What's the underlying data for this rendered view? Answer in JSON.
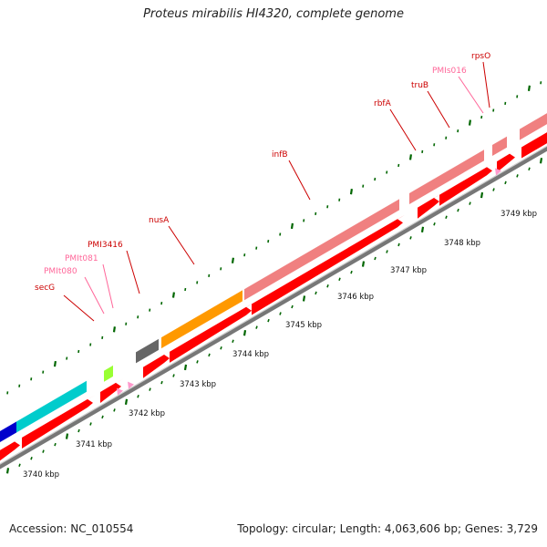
{
  "title": "Proteus mirabilis HI4320, complete genome",
  "footer": {
    "accession": "Accession: NC_010554",
    "info": "Topology: circular; Length: 4,063,606 bp; Genes: 3,729"
  },
  "colors": {
    "background": "#ffffff",
    "gene_red": "#ff0000",
    "gene_pink": "#f08080",
    "gene_orange": "#ff9900",
    "gene_cyan": "#00cccc",
    "gene_lime": "#99ff33",
    "gene_gray": "#666666",
    "gene_blue": "#0000cc",
    "gene_light_pink": "#ff99cc",
    "backbone": "#999999",
    "tick": "#006600",
    "label_red": "#cc0000",
    "label_pink": "#ff6699"
  },
  "scale": {
    "unit": "kbp",
    "labels": [
      "3740 kbp",
      "3741 kbp",
      "3742 kbp",
      "3743 kbp",
      "3744 kbp",
      "3745 kbp",
      "3746 kbp",
      "3747 kbp",
      "3748 kbp",
      "3749 kbp"
    ]
  },
  "gene_labels": [
    {
      "name": "secG",
      "color": "red"
    },
    {
      "name": "PMIt080",
      "color": "pink"
    },
    {
      "name": "PMIt081",
      "color": "pink"
    },
    {
      "name": "PMI3416",
      "color": "red"
    },
    {
      "name": "nusA",
      "color": "red"
    },
    {
      "name": "infB",
      "color": "red"
    },
    {
      "name": "rbfA",
      "color": "red"
    },
    {
      "name": "truB",
      "color": "red"
    },
    {
      "name": "PMIs016",
      "color": "pink"
    },
    {
      "name": "rpsO",
      "color": "red"
    }
  ]
}
